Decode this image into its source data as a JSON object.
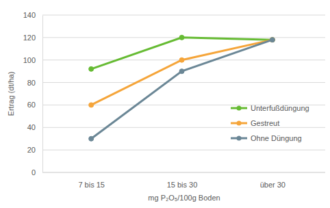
{
  "chart_data": {
    "type": "line",
    "x_label": "mg P₂O₅/100g Boden",
    "y_label": "Ertrag (dt/ha)",
    "categories": [
      "7 bis 15",
      "15 bis 30",
      "über 30"
    ],
    "series": [
      {
        "name": "Unterfußdüngung",
        "color": "#66bb33",
        "marker": "circle",
        "values": [
          92,
          120,
          118
        ]
      },
      {
        "name": "Gestreut",
        "color": "#f5a53a",
        "marker": "circle",
        "values": [
          60,
          100,
          118
        ]
      },
      {
        "name": "Ohne Düngung",
        "color": "#6b8796",
        "marker": "circle",
        "values": [
          30,
          90,
          118
        ]
      }
    ],
    "ylim": [
      0,
      140
    ],
    "yticks": [
      0,
      20,
      40,
      60,
      80,
      100,
      120,
      140
    ],
    "grid": true,
    "legend": "right"
  }
}
